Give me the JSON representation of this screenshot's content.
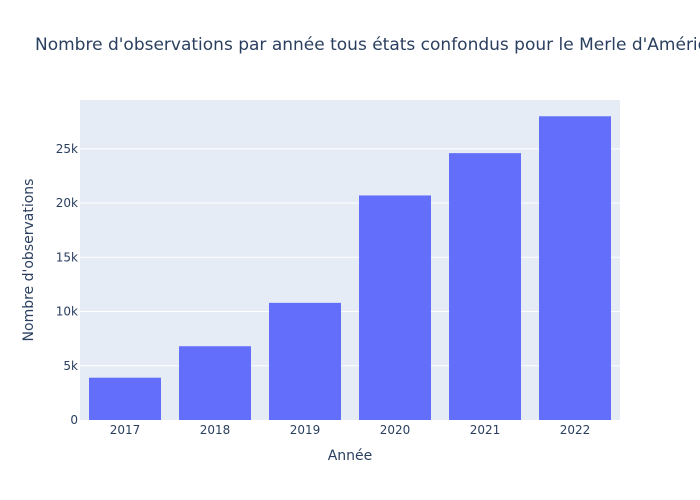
{
  "chart_data": {
    "type": "bar",
    "title": "Nombre d'observations par année tous états confondus pour le Merle d'Amérique",
    "xlabel": "Année",
    "ylabel": "Nombre d'observations",
    "categories": [
      "2017",
      "2018",
      "2019",
      "2020",
      "2021",
      "2022"
    ],
    "values": [
      3900,
      6800,
      10800,
      20700,
      24600,
      28000
    ],
    "ylim": [
      0,
      29500
    ],
    "yticks": [
      0,
      5000,
      10000,
      15000,
      20000,
      25000
    ],
    "ytick_labels": [
      "0",
      "5k",
      "10k",
      "15k",
      "20k",
      "25k"
    ],
    "grid": true,
    "legend": "none",
    "colors": {
      "bar": "#636efa",
      "plot_background": "#e5ecf6",
      "grid": "#ffffff",
      "text": "#2a3f5f"
    }
  }
}
